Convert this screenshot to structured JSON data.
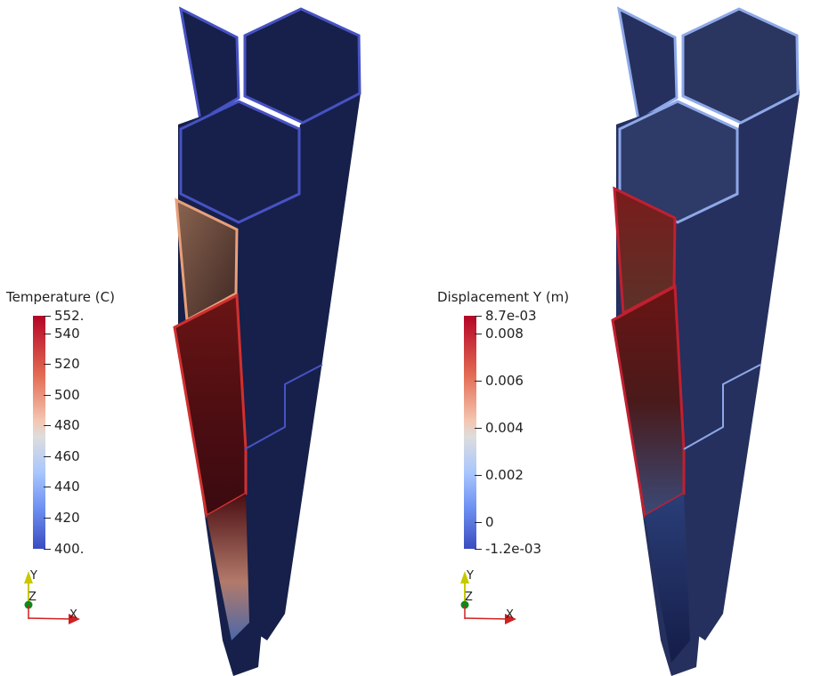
{
  "left_view": {
    "legend": {
      "title": "Temperature (C)",
      "top_label": "552.",
      "bottom_label": "400.",
      "ticks": [
        "540",
        "520",
        "500",
        "480",
        "460",
        "440",
        "420"
      ]
    }
  },
  "right_view": {
    "legend": {
      "title": "Displacement Y (m)",
      "top_label": "8.7e-03",
      "bottom_label": "-1.2e-03",
      "ticks": [
        "0.008",
        "0.006",
        "0.004",
        "0.002",
        "0"
      ]
    }
  },
  "axes": {
    "x": "X",
    "y": "Y",
    "z": "Z"
  },
  "colors": {
    "colormap_low": "#3b4cc0",
    "colormap_mid": "#dddddd",
    "colormap_high": "#b40426",
    "mesh_dark": "#16204a",
    "edge_left": "#4752c4",
    "edge_right": "#8ea8e8"
  },
  "icons": [
    "axes-triad-icon"
  ]
}
